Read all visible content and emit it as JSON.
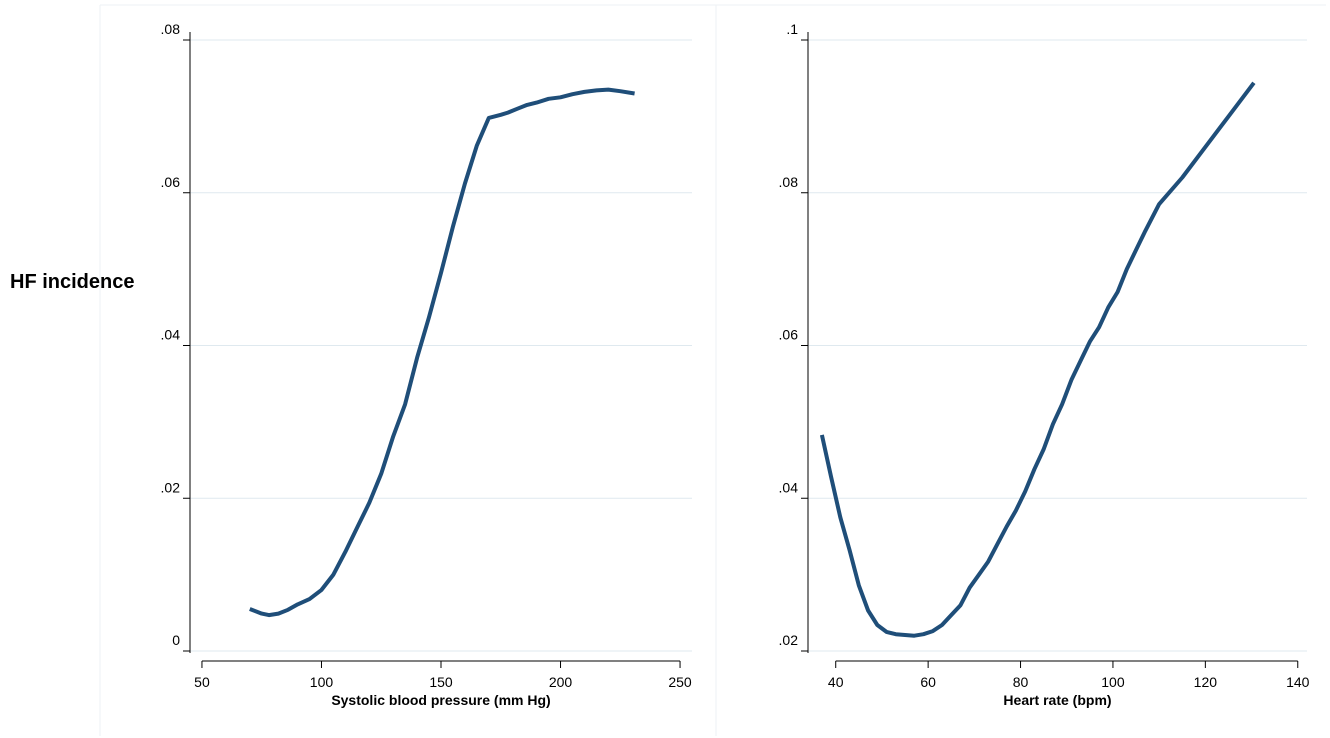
{
  "y_title": "HF incidence",
  "colors": {
    "line": "#1f4e79",
    "grid": "#dfe9ef",
    "axis": "#000000",
    "panel_border": "#eef2f4"
  },
  "chart_data": [
    {
      "type": "line",
      "xlabel": "Systolic blood pressure (mm Hg)",
      "ylabel": "HF incidence",
      "xlim": [
        45,
        255
      ],
      "ylim": [
        0,
        0.08
      ],
      "x_ticks": [
        50,
        100,
        150,
        200,
        250
      ],
      "x_tick_labels": [
        "50",
        "100",
        "150",
        "200",
        "250"
      ],
      "y_ticks": [
        0,
        0.02,
        0.04,
        0.06,
        0.08
      ],
      "y_tick_labels": [
        "0",
        ".02",
        ".04",
        ".06",
        ".08"
      ],
      "grid": true,
      "series": [
        {
          "x": [
            70,
            75,
            78,
            82,
            86,
            90,
            95,
            100,
            105,
            110,
            115,
            120,
            125,
            130,
            135,
            140,
            145,
            150,
            155,
            160,
            165,
            170,
            175,
            178,
            182,
            186,
            190,
            195,
            200,
            205,
            210,
            215,
            220,
            225,
            231
          ],
          "y": [
            0.0055,
            0.0049,
            0.0047,
            0.0049,
            0.0054,
            0.0061,
            0.0068,
            0.008,
            0.01,
            0.013,
            0.0162,
            0.0194,
            0.0232,
            0.0281,
            0.0323,
            0.0384,
            0.0437,
            0.0495,
            0.0556,
            0.0612,
            0.0662,
            0.0698,
            0.0702,
            0.0705,
            0.071,
            0.0715,
            0.0718,
            0.0723,
            0.0725,
            0.0729,
            0.0732,
            0.0734,
            0.0735,
            0.0733,
            0.073
          ]
        }
      ]
    },
    {
      "type": "line",
      "xlabel": "Heart rate (bpm)",
      "ylabel": "HF incidence",
      "xlim": [
        34,
        142
      ],
      "ylim": [
        0.02,
        0.1
      ],
      "x_ticks": [
        40,
        60,
        80,
        100,
        120,
        140
      ],
      "x_tick_labels": [
        "40",
        "60",
        "80",
        "100",
        "120",
        "140"
      ],
      "y_ticks": [
        0.02,
        0.04,
        0.06,
        0.08,
        0.1
      ],
      "y_tick_labels": [
        ".02",
        ".04",
        ".06",
        ".08",
        ".1"
      ],
      "grid": true,
      "series": [
        {
          "x": [
            37,
            39,
            41,
            43,
            45,
            47,
            49,
            51,
            53,
            55,
            57,
            59,
            61,
            63,
            65,
            67,
            69,
            71,
            73,
            75,
            77,
            79,
            81,
            83,
            85,
            87,
            89,
            91,
            93,
            95,
            97,
            99,
            101,
            103,
            105,
            107,
            110,
            115,
            120,
            125,
            130.5
          ],
          "y": [
            0.0483,
            0.0428,
            0.0375,
            0.0332,
            0.0286,
            0.0253,
            0.0234,
            0.0225,
            0.0222,
            0.0221,
            0.022,
            0.0222,
            0.0226,
            0.0234,
            0.0247,
            0.026,
            0.0283,
            0.03,
            0.0317,
            0.034,
            0.0363,
            0.0384,
            0.0409,
            0.0438,
            0.0464,
            0.0497,
            0.0523,
            0.0555,
            0.058,
            0.0605,
            0.0624,
            0.065,
            0.067,
            0.07,
            0.0725,
            0.075,
            0.0785,
            0.082,
            0.086,
            0.09,
            0.0944
          ]
        }
      ]
    }
  ]
}
